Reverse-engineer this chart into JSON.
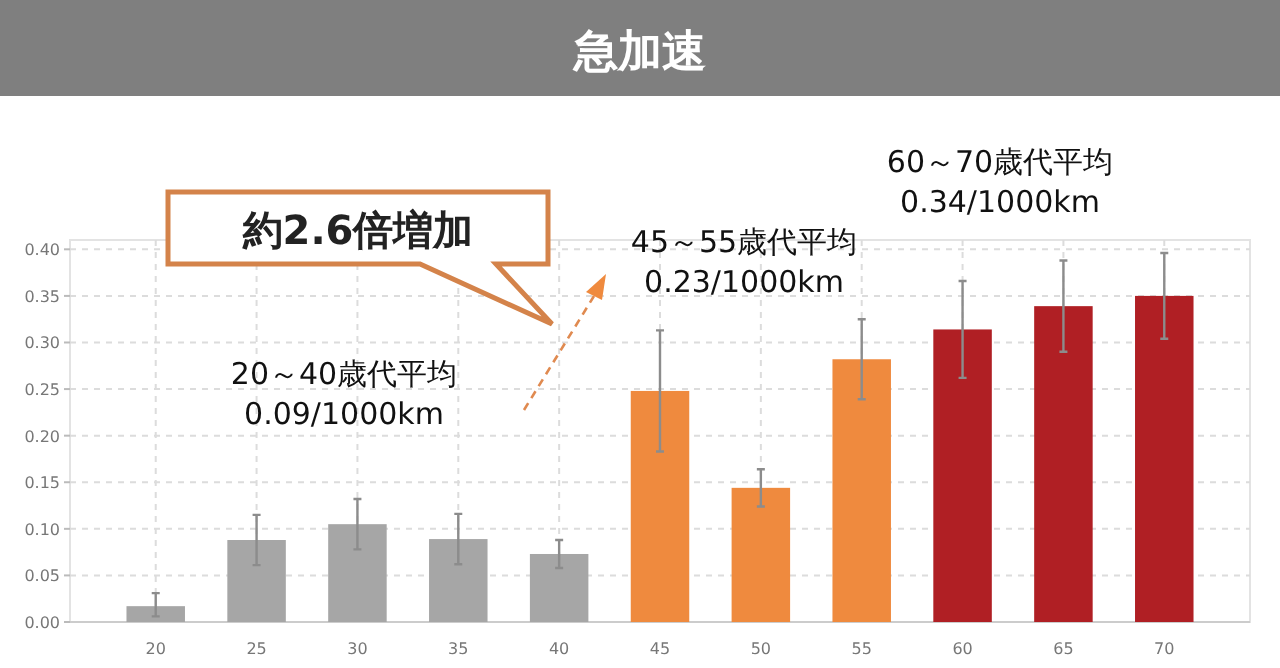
{
  "chart_data": {
    "type": "bar",
    "title": "急加速",
    "categories": [
      "20",
      "25",
      "30",
      "35",
      "40",
      "45",
      "50",
      "55",
      "60",
      "65",
      "70"
    ],
    "values": [
      0.017,
      0.088,
      0.105,
      0.089,
      0.073,
      0.248,
      0.144,
      0.282,
      0.314,
      0.339,
      0.35
    ],
    "errors": [
      [
        0.006,
        0.031
      ],
      0.027,
      0.027,
      0.027,
      0.015,
      0.065,
      0.02,
      0.043,
      0.052,
      0.049,
      0.046
    ],
    "colors": [
      "#a6a6a6",
      "#a6a6a6",
      "#a6a6a6",
      "#a6a6a6",
      "#a6a6a6",
      "#ef8a3e",
      "#ef8a3e",
      "#ef8a3e",
      "#b01f24",
      "#b01f24",
      "#b01f24"
    ],
    "ylim": [
      0,
      0.41
    ],
    "yticks": [
      {
        "value": 0,
        "label": "0.00"
      },
      {
        "value": 0.05,
        "label": "0.05"
      },
      {
        "value": 0.1,
        "label": "0.10"
      },
      {
        "value": 0.15,
        "label": "0.15"
      },
      {
        "value": 0.2,
        "label": "0.20"
      },
      {
        "value": 0.25,
        "label": "0.25"
      },
      {
        "value": 0.3,
        "label": "0.30"
      },
      {
        "value": 0.35,
        "label": "0.35"
      },
      {
        "value": 0.4,
        "label": "0.40"
      }
    ],
    "grid": true,
    "annotations": [
      "約2.6倍増加",
      "20～40歳代平均\n0.09/1000km",
      "45～55歳代平均\n0.23/1000km",
      "60～70歳代平均\n0.34/1000km"
    ]
  }
}
